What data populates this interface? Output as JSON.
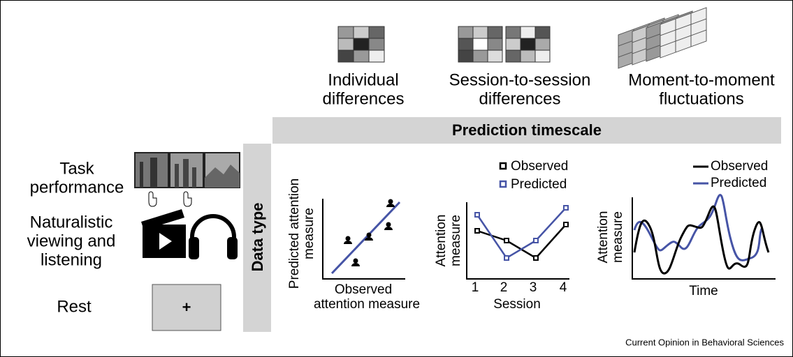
{
  "columns": [
    {
      "lines": [
        "Individual",
        "differences"
      ]
    },
    {
      "lines": [
        "Session-to-session",
        "differences"
      ]
    },
    {
      "lines": [
        "Moment-to-moment",
        "fluctuations"
      ]
    }
  ],
  "timescale_label": "Prediction timescale",
  "data_type_label": "Data type",
  "data_types": [
    {
      "lines": [
        "Task",
        "performance"
      ]
    },
    {
      "lines": [
        "Naturalistic",
        "viewing and",
        "listening"
      ]
    },
    {
      "lines": [
        "Rest"
      ]
    }
  ],
  "rest_symbol": "+",
  "panels": [
    {
      "y_label": [
        "Predicted attention",
        "measure"
      ],
      "x_label": [
        "Observed",
        "attention measure"
      ]
    },
    {
      "legend": [
        "Observed",
        "Predicted"
      ],
      "y_label": [
        "Attention",
        "measure"
      ],
      "x_ticks": [
        "1",
        "2",
        "3",
        "4"
      ],
      "x_label": "Session"
    },
    {
      "legend": [
        "Observed",
        "Predicted"
      ],
      "y_label": [
        "Attention",
        "measure"
      ],
      "x_label": "Time"
    }
  ],
  "credit": "Current Opinion in Behavioral Sciences"
}
